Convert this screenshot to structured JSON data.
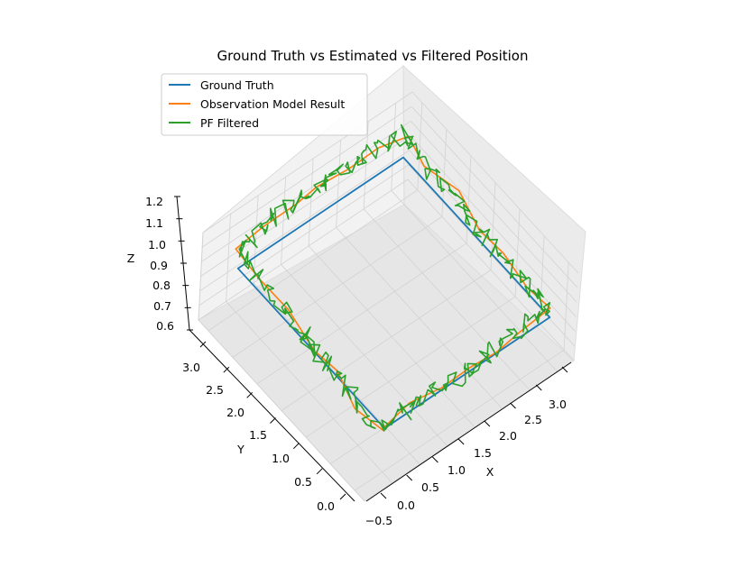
{
  "chart_data": {
    "type": "line",
    "title": "Ground Truth vs Estimated vs Filtered Position",
    "xlabel": "X",
    "ylabel": "Y",
    "zlabel": "Z",
    "xlim": [
      -0.5,
      3.3
    ],
    "ylim": [
      -0.2,
      3.2
    ],
    "zlim": [
      0.6,
      1.2
    ],
    "x_ticks": [
      "−0.5",
      "0.0",
      "0.5",
      "1.0",
      "1.5",
      "2.0",
      "2.5",
      "3.0"
    ],
    "y_ticks": [
      "0.0",
      "0.5",
      "1.0",
      "1.5",
      "2.0",
      "2.5",
      "3.0"
    ],
    "z_ticks": [
      "0.6",
      "0.7",
      "0.8",
      "0.9",
      "1.0",
      "1.1",
      "1.2"
    ],
    "legend_position": "top-left",
    "grid": true,
    "series": [
      {
        "name": "Ground Truth",
        "color": "#1f77b4",
        "points": [
          [
            0.0,
            0.0,
            0.9
          ],
          [
            3.0,
            0.0,
            0.9
          ],
          [
            3.0,
            3.0,
            0.9
          ],
          [
            0.0,
            3.0,
            0.9
          ],
          [
            0.0,
            0.0,
            0.9
          ]
        ]
      },
      {
        "name": "Observation Model Result",
        "color": "#ff7f0e",
        "points": [
          [
            0.05,
            0.05,
            0.88
          ],
          [
            0.5,
            0.02,
            0.92
          ],
          [
            1.0,
            0.04,
            0.9
          ],
          [
            1.5,
            -0.03,
            0.93
          ],
          [
            2.0,
            0.05,
            0.89
          ],
          [
            2.5,
            0.02,
            0.92
          ],
          [
            3.0,
            0.08,
            0.95
          ],
          [
            3.05,
            0.5,
            0.92
          ],
          [
            3.0,
            1.0,
            0.94
          ],
          [
            2.98,
            1.5,
            0.97
          ],
          [
            3.05,
            2.0,
            1.0
          ],
          [
            2.96,
            2.5,
            1.02
          ],
          [
            3.02,
            3.0,
            1.05
          ],
          [
            2.5,
            3.03,
            1.07
          ],
          [
            2.0,
            2.98,
            1.1
          ],
          [
            1.5,
            3.04,
            1.08
          ],
          [
            1.0,
            2.97,
            1.1
          ],
          [
            0.5,
            3.02,
            1.06
          ],
          [
            0.02,
            3.0,
            1.02
          ],
          [
            -0.03,
            2.5,
            0.98
          ],
          [
            0.03,
            2.0,
            0.95
          ],
          [
            -0.02,
            1.5,
            0.92
          ],
          [
            0.02,
            1.0,
            0.9
          ],
          [
            -0.04,
            0.5,
            0.89
          ],
          [
            0.0,
            0.0,
            0.88
          ]
        ]
      },
      {
        "name": "PF Filtered",
        "color": "#2ca02c",
        "points": [
          [
            0.05,
            0.05,
            0.88
          ],
          [
            0.5,
            0.02,
            0.92
          ],
          [
            1.0,
            0.04,
            0.9
          ],
          [
            1.5,
            -0.03,
            0.93
          ],
          [
            2.0,
            0.05,
            0.89
          ],
          [
            2.5,
            0.02,
            0.92
          ],
          [
            3.0,
            0.08,
            0.95
          ],
          [
            3.05,
            0.5,
            0.92
          ],
          [
            3.0,
            1.0,
            0.94
          ],
          [
            2.98,
            1.5,
            0.97
          ],
          [
            3.05,
            2.0,
            1.0
          ],
          [
            2.96,
            2.5,
            1.02
          ],
          [
            3.02,
            3.0,
            1.05
          ],
          [
            2.5,
            3.03,
            1.07
          ],
          [
            2.0,
            2.98,
            1.1
          ],
          [
            1.5,
            3.04,
            1.08
          ],
          [
            1.0,
            2.97,
            1.1
          ],
          [
            0.5,
            3.02,
            1.06
          ],
          [
            0.02,
            3.0,
            1.02
          ],
          [
            -0.03,
            2.5,
            0.98
          ],
          [
            0.03,
            2.0,
            0.95
          ],
          [
            -0.02,
            1.5,
            0.92
          ],
          [
            0.02,
            1.0,
            0.9
          ],
          [
            -0.04,
            0.5,
            0.89
          ],
          [
            0.0,
            0.0,
            0.88
          ]
        ]
      }
    ]
  }
}
